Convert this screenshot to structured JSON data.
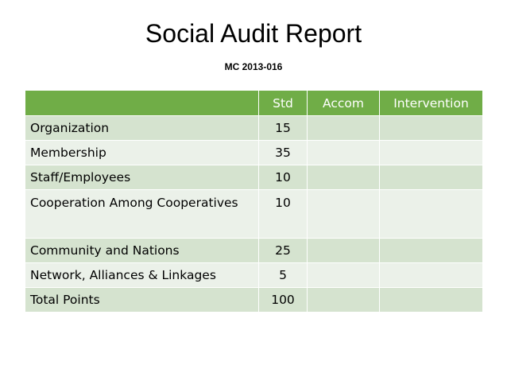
{
  "title": "Social Audit Report",
  "subtitle": "MC 2013-016",
  "table": {
    "headers": [
      "",
      "Std",
      "Accom",
      "Intervention"
    ],
    "rows": [
      {
        "name": "Organization",
        "std": "15",
        "accom": "",
        "intervention": ""
      },
      {
        "name": "Membership",
        "std": "35",
        "accom": "",
        "intervention": ""
      },
      {
        "name": "Staff/Employees",
        "std": "10",
        "accom": "",
        "intervention": ""
      },
      {
        "name": "Cooperation Among Cooperatives",
        "std": "10",
        "accom": "",
        "intervention": ""
      },
      {
        "name": "Community and Nations",
        "std": "25",
        "accom": "",
        "intervention": ""
      },
      {
        "name": "Network, Alliances & Linkages",
        "std": "5",
        "accom": "",
        "intervention": ""
      },
      {
        "name": "Total Points",
        "std": "100",
        "accom": "",
        "intervention": ""
      }
    ]
  },
  "colors": {
    "header_bg": "#70ad47",
    "header_text": "#ffffff",
    "row_dark": "#d5e3cf",
    "row_light": "#ebf1e9"
  }
}
